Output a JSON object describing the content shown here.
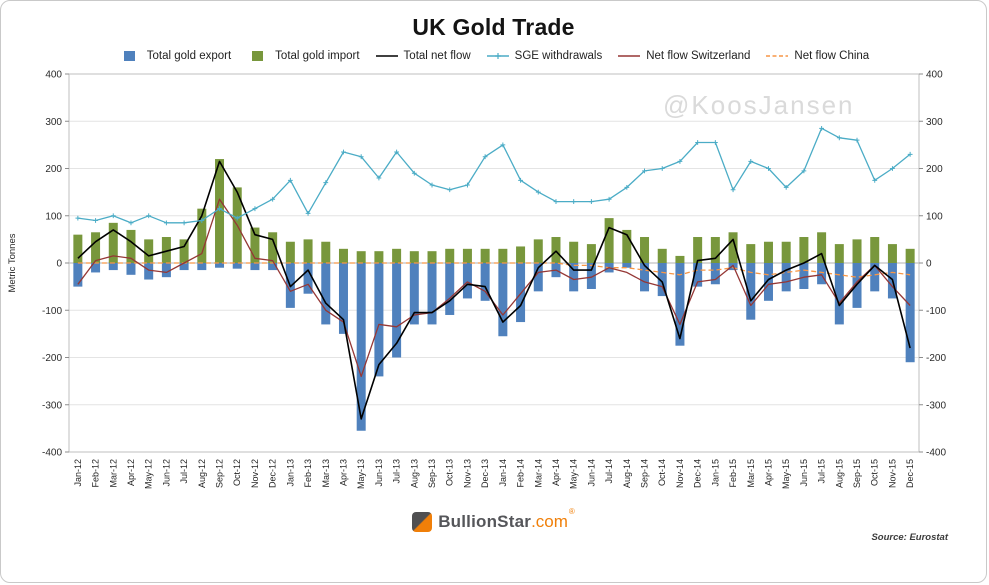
{
  "watermark": "@KoosJansen",
  "footer": {
    "brand": "BullionStar",
    "brand_suffix": ".com",
    "registered": "®",
    "source": "Source: Eurostat"
  },
  "chart_data": {
    "type": "bar+line combo",
    "title": "UK Gold Trade",
    "ylabel": "Metric Tonnes",
    "ylim": [
      -400,
      400
    ],
    "ytick_step": 100,
    "grid": true,
    "legend_position": "top",
    "categories": [
      "Jan-12",
      "Feb-12",
      "Mar-12",
      "Apr-12",
      "May-12",
      "Jun-12",
      "Jul-12",
      "Aug-12",
      "Sep-12",
      "Oct-12",
      "Nov-12",
      "Dec-12",
      "Jan-13",
      "Feb-13",
      "Mar-13",
      "Apr-13",
      "May-13",
      "Jun-13",
      "Jul-13",
      "Aug-13",
      "Sep-13",
      "Oct-13",
      "Nov-13",
      "Dec-13",
      "Jan-14",
      "Feb-14",
      "Mar-14",
      "Apr-14",
      "May-14",
      "Jun-14",
      "Jul-14",
      "Aug-14",
      "Sep-14",
      "Oct-14",
      "Nov-14",
      "Dec-14",
      "Jan-15",
      "Feb-15",
      "Mar-15",
      "Apr-15",
      "May-15",
      "Jun-15",
      "Jul-15",
      "Aug-15",
      "Sep-15",
      "Oct-15",
      "Nov-15",
      "Dec-15"
    ],
    "series": [
      {
        "name": "Total gold export",
        "type": "bar",
        "color": "#4f81bd",
        "values": [
          -50,
          -20,
          -15,
          -25,
          -35,
          -30,
          -15,
          -15,
          -10,
          -12,
          -15,
          -15,
          -95,
          -65,
          -130,
          -150,
          -355,
          -240,
          -200,
          -130,
          -130,
          -110,
          -75,
          -80,
          -155,
          -125,
          -60,
          -30,
          -60,
          -55,
          -20,
          -10,
          -60,
          -70,
          -175,
          -50,
          -45,
          -15,
          -120,
          -80,
          -60,
          -55,
          -45,
          -130,
          -95,
          -60,
          -75,
          -210
        ]
      },
      {
        "name": "Total gold import",
        "type": "bar",
        "color": "#78973c",
        "values": [
          60,
          65,
          85,
          70,
          50,
          55,
          50,
          115,
          220,
          160,
          75,
          65,
          45,
          50,
          45,
          30,
          25,
          25,
          30,
          25,
          25,
          30,
          30,
          30,
          30,
          35,
          50,
          55,
          45,
          40,
          95,
          70,
          55,
          30,
          15,
          55,
          55,
          65,
          40,
          45,
          45,
          55,
          65,
          40,
          50,
          55,
          40,
          30
        ]
      },
      {
        "name": "Total net flow",
        "type": "line",
        "color": "#000000",
        "marker": "none",
        "dashed": false,
        "values": [
          10,
          45,
          70,
          45,
          15,
          25,
          35,
          100,
          215,
          150,
          60,
          50,
          -50,
          -15,
          -85,
          -120,
          -330,
          -215,
          -170,
          -105,
          -105,
          -80,
          -45,
          -50,
          -125,
          -90,
          -10,
          25,
          -15,
          -15,
          75,
          60,
          -5,
          -40,
          -160,
          5,
          10,
          50,
          -80,
          -35,
          -15,
          0,
          20,
          -90,
          -45,
          -5,
          -35,
          -180
        ]
      },
      {
        "name": "SGE withdrawals",
        "type": "line",
        "color": "#4bacc6",
        "marker": "plus",
        "dashed": false,
        "values": [
          95,
          90,
          100,
          85,
          100,
          85,
          85,
          90,
          115,
          95,
          115,
          135,
          175,
          105,
          170,
          235,
          225,
          180,
          235,
          190,
          165,
          155,
          165,
          225,
          250,
          175,
          150,
          130,
          130,
          130,
          135,
          160,
          195,
          200,
          215,
          255,
          255,
          155,
          215,
          200,
          160,
          195,
          285,
          265,
          260,
          175,
          200,
          230
        ]
      },
      {
        "name": "Net flow Switzerland",
        "type": "line",
        "color": "#953735",
        "marker": "none",
        "dashed": false,
        "values": [
          -45,
          5,
          15,
          10,
          -15,
          -20,
          0,
          20,
          135,
          80,
          10,
          5,
          -60,
          -45,
          -100,
          -125,
          -240,
          -130,
          -135,
          -110,
          -105,
          -75,
          -40,
          -60,
          -110,
          -65,
          -20,
          -15,
          -35,
          -30,
          -10,
          -20,
          -40,
          -50,
          -130,
          -40,
          -35,
          -5,
          -90,
          -45,
          -40,
          -30,
          -25,
          -85,
          -40,
          -5,
          -50,
          -90
        ]
      },
      {
        "name": "Net flow China",
        "type": "line",
        "color": "#f79646",
        "marker": "none",
        "dashed": true,
        "values": [
          0,
          0,
          0,
          0,
          0,
          0,
          0,
          0,
          0,
          0,
          0,
          0,
          0,
          0,
          0,
          0,
          0,
          0,
          0,
          0,
          0,
          0,
          0,
          0,
          0,
          0,
          0,
          0,
          -5,
          -5,
          -10,
          -10,
          -15,
          -20,
          -25,
          -15,
          -15,
          -10,
          -20,
          -25,
          -20,
          -15,
          -20,
          -25,
          -30,
          -25,
          -20,
          -25
        ]
      }
    ]
  }
}
